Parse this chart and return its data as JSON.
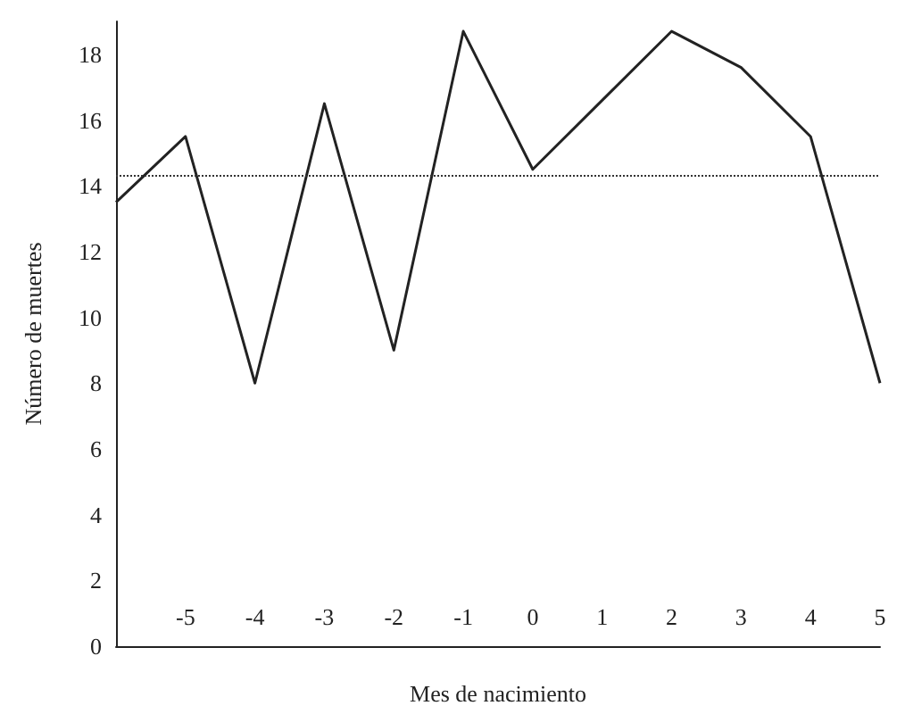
{
  "chart_data": {
    "type": "line",
    "xlabel": "Mes de nacimiento",
    "ylabel": "Número de muertes",
    "categories": [
      null,
      "-5",
      "-4",
      "-3",
      "-2",
      "-1",
      "0",
      "1",
      "2",
      "3",
      "4",
      "5"
    ],
    "series": [
      {
        "color": "#222222",
        "values": [
          13.5,
          15.5,
          8,
          16.5,
          9,
          18.7,
          14.5,
          16.6,
          18.7,
          17.6,
          15.5,
          8
        ]
      }
    ],
    "ylim": [
      0,
      19
    ],
    "yticks": [
      0,
      2,
      4,
      6,
      8,
      10,
      12,
      14,
      16,
      18
    ],
    "ref_lines": [
      {
        "axis": "y",
        "value": 14.3,
        "line_style": "dotted",
        "color": "#333333"
      }
    ],
    "grid": false,
    "marker": "none",
    "line_style": "solid"
  }
}
